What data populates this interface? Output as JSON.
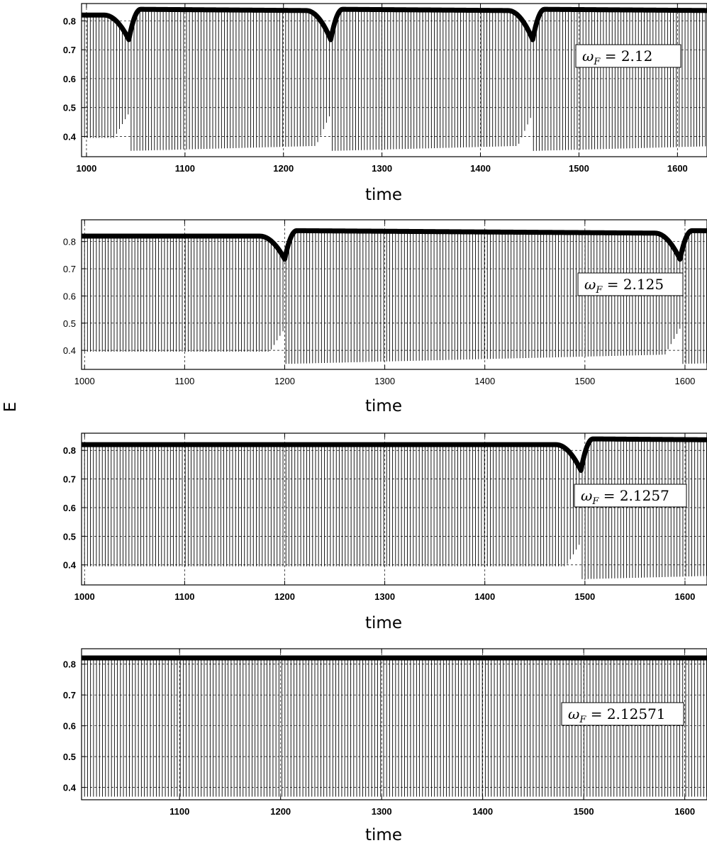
{
  "ylabel": "E",
  "chart_data": [
    {
      "type": "line",
      "xlabel": "time",
      "ylabel": "E",
      "xlim": [
        995,
        1630
      ],
      "ylim": [
        0.33,
        0.86
      ],
      "x_ticks": [
        1000,
        1100,
        1200,
        1300,
        1400,
        1500,
        1600
      ],
      "y_ticks": [
        0.4,
        0.5,
        0.6,
        0.7,
        0.8
      ],
      "grid": true,
      "tick_style": "bold",
      "annotation": "ω_F = 2.12",
      "annotation_parts": {
        "symbol": "ω",
        "subscript": "F",
        "value": "= 2.12"
      },
      "envelope_dips": [
        1043,
        1248,
        1453
      ],
      "upper_envelope_range": [
        0.735,
        0.84
      ],
      "lower_envelope_range": [
        0.35,
        0.48
      ],
      "oscillation_period": 2.96
    },
    {
      "type": "line",
      "xlabel": "time",
      "ylabel": "E",
      "xlim": [
        997,
        1622
      ],
      "ylim": [
        0.33,
        0.88
      ],
      "x_ticks": [
        1000,
        1100,
        1200,
        1300,
        1400,
        1500,
        1600
      ],
      "y_ticks": [
        0.4,
        0.5,
        0.6,
        0.7,
        0.8
      ],
      "grid": true,
      "tick_style": "normal",
      "annotation": "ω_F = 2.125",
      "annotation_parts": {
        "symbol": "ω",
        "subscript": "F",
        "value": "= 2.125"
      },
      "envelope_dips": [
        1200,
        1595
      ],
      "upper_envelope_range": [
        0.735,
        0.84
      ],
      "lower_envelope_range": [
        0.35,
        0.48
      ],
      "oscillation_period": 2.96
    },
    {
      "type": "line",
      "xlabel": "time",
      "ylabel": "E",
      "xlim": [
        997,
        1622
      ],
      "ylim": [
        0.33,
        0.86
      ],
      "x_ticks": [
        1000,
        1100,
        1200,
        1300,
        1400,
        1500,
        1600
      ],
      "y_ticks": [
        0.4,
        0.5,
        0.6,
        0.7,
        0.8
      ],
      "grid": true,
      "tick_style": "bold",
      "annotation": "ω_F = 2.1257",
      "annotation_parts": {
        "symbol": "ω",
        "subscript": "F",
        "value": "= 2.1257"
      },
      "envelope_dips": [
        1496
      ],
      "upper_envelope_range": [
        0.73,
        0.84
      ],
      "lower_envelope_range": [
        0.35,
        0.48
      ],
      "oscillation_period": 2.96
    },
    {
      "type": "line",
      "xlabel": "time",
      "ylabel": "E",
      "xlim": [
        1003,
        1622
      ],
      "ylim": [
        0.36,
        0.85
      ],
      "x_ticks": [
        1100,
        1200,
        1300,
        1400,
        1500,
        1600
      ],
      "y_ticks": [
        0.4,
        0.5,
        0.6,
        0.7,
        0.8
      ],
      "grid": true,
      "tick_style": "bold",
      "annotation": "ω_F = 2.12571",
      "annotation_parts": {
        "symbol": "ω",
        "subscript": "F",
        "value": "= 2.12571"
      },
      "envelope_dips": [],
      "upper_envelope_range": [
        0.82,
        0.82
      ],
      "lower_envelope_range": [
        0.37,
        0.37
      ],
      "oscillation_period": 2.96
    }
  ]
}
